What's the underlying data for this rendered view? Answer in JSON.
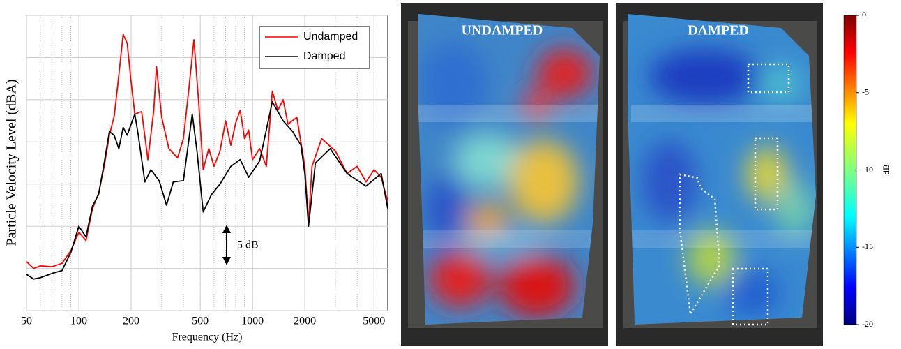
{
  "chart_data": {
    "type": "line",
    "xlabel": "Frequency (Hz)",
    "ylabel": "Particle Velocity Level (dBA)",
    "xscale": "log",
    "xlim": [
      50,
      6000
    ],
    "xticks": [
      50,
      100,
      200,
      500,
      1000,
      2000,
      5000
    ],
    "ylim": [
      0,
      35
    ],
    "yticks": [
      0,
      5,
      10,
      15,
      20,
      25,
      30,
      35
    ],
    "ytick_labels": false,
    "grid": true,
    "legend": "upper right",
    "annotation": "5 dB",
    "series": [
      {
        "name": "Undamped",
        "color": "#ff0000",
        "x": [
          50,
          55,
          60,
          70,
          80,
          90,
          100,
          110,
          120,
          130,
          140,
          150,
          160,
          170,
          180,
          190,
          200,
          210,
          230,
          250,
          270,
          280,
          300,
          330,
          370,
          400,
          430,
          460,
          490,
          520,
          560,
          600,
          650,
          700,
          750,
          800,
          850,
          900,
          950,
          1000,
          1100,
          1200,
          1300,
          1400,
          1500,
          1600,
          1800,
          2000,
          2100,
          2200,
          2500,
          3000,
          3500,
          4000,
          4500,
          5000,
          5500,
          6000
        ],
        "values": [
          5.8,
          5,
          5.3,
          5.2,
          5.6,
          7.1,
          9.3,
          8.3,
          12.1,
          13.9,
          17.1,
          20.8,
          23.1,
          27.9,
          32.75,
          31.7,
          27.1,
          23.3,
          23.6,
          17.9,
          23.75,
          28.9,
          22.9,
          19.2,
          18.1,
          20.4,
          26.25,
          32.1,
          24.6,
          16.7,
          19.2,
          17.1,
          18.9,
          22.5,
          19.6,
          22.25,
          23.75,
          20.4,
          21.4,
          17.9,
          19.2,
          17.1,
          26,
          23.75,
          25,
          22.1,
          22.9,
          17.1,
          10.4,
          17.1,
          20.4,
          18.9,
          16.25,
          17.1,
          15.25,
          16.7,
          15.8,
          12.9
        ]
      },
      {
        "name": "Damped",
        "color": "#000000",
        "x": [
          50,
          55,
          60,
          70,
          80,
          90,
          100,
          110,
          120,
          130,
          140,
          150,
          160,
          170,
          180,
          190,
          200,
          210,
          220,
          240,
          260,
          290,
          320,
          350,
          400,
          450,
          480,
          520,
          580,
          650,
          750,
          850,
          950,
          1100,
          1300,
          1500,
          1700,
          1900,
          2000,
          2100,
          2300,
          2800,
          3500,
          4500,
          5500,
          6000
        ],
        "values": [
          4.3,
          3.75,
          3.9,
          4.4,
          4.75,
          6.9,
          10,
          8.75,
          12.4,
          13.75,
          17.5,
          21.25,
          20.75,
          19.2,
          21.7,
          20.8,
          22.1,
          23.3,
          20.8,
          15.25,
          16.7,
          15.4,
          12.5,
          15.25,
          15.4,
          23.3,
          18.75,
          11.7,
          13.75,
          15,
          17.1,
          17.9,
          15.8,
          17.75,
          24.75,
          22.5,
          21.25,
          19.6,
          16.25,
          10,
          17.5,
          19.2,
          16.25,
          14.75,
          16.25,
          12.1
        ]
      }
    ]
  },
  "panels": [
    {
      "title": "UNDAMPED"
    },
    {
      "title": "DAMPED"
    }
  ],
  "colorbar": {
    "label": "dB",
    "lim": [
      -20,
      0
    ],
    "ticks": [
      0,
      -5,
      -10,
      -15,
      -20
    ]
  }
}
